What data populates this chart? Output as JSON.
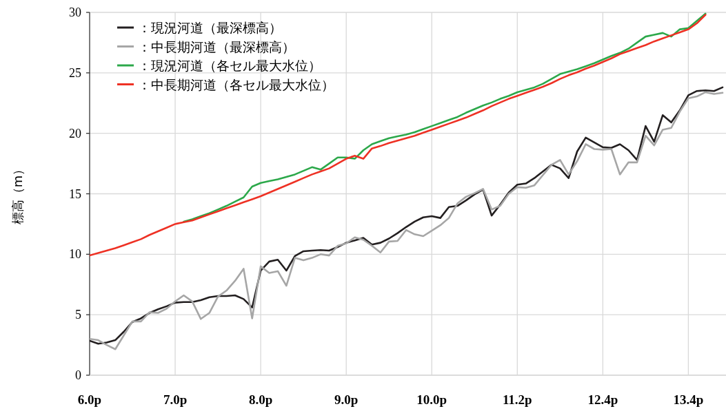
{
  "chart_data": {
    "type": "line",
    "ylabel": "標高（m）",
    "ylim": [
      0,
      30
    ],
    "yticks": [
      0,
      5,
      10,
      15,
      20,
      25,
      30
    ],
    "grid": true,
    "legend": "top left",
    "categories": [
      "6.0p",
      null,
      null,
      null,
      null,
      null,
      null,
      null,
      null,
      null,
      "7.0p",
      null,
      null,
      null,
      null,
      null,
      null,
      null,
      null,
      null,
      "8.0p",
      null,
      null,
      null,
      null,
      null,
      null,
      null,
      null,
      null,
      "9.0p",
      null,
      null,
      null,
      null,
      null,
      null,
      null,
      null,
      null,
      "10.0p",
      null,
      null,
      null,
      null,
      null,
      null,
      null,
      null,
      null,
      "11.2p",
      null,
      null,
      null,
      null,
      null,
      null,
      null,
      null,
      null,
      "12.4p",
      null,
      null,
      null,
      null,
      null,
      null,
      null,
      null,
      null,
      "13.4p",
      null,
      null,
      null,
      null
    ],
    "series": [
      {
        "name": "：現況河道（最深標高）",
        "color": "#231f20",
        "values": [
          2.85,
          2.6,
          2.7,
          2.9,
          3.6,
          4.4,
          4.7,
          5.15,
          5.45,
          5.7,
          6.0,
          6.05,
          6.05,
          6.2,
          6.45,
          6.55,
          6.55,
          6.6,
          6.3,
          5.6,
          8.65,
          9.4,
          9.55,
          8.65,
          9.85,
          10.25,
          10.3,
          10.35,
          10.3,
          10.6,
          10.95,
          11.15,
          11.35,
          10.8,
          10.95,
          11.3,
          11.75,
          12.25,
          12.7,
          13.05,
          13.15,
          13.0,
          13.9,
          14.0,
          14.45,
          14.95,
          15.35,
          13.2,
          14.1,
          15.1,
          15.75,
          15.85,
          16.3,
          16.85,
          17.4,
          17.1,
          16.3,
          18.5,
          19.65,
          19.25,
          18.85,
          18.8,
          19.1,
          18.6,
          17.8,
          20.6,
          19.3,
          21.5,
          20.9,
          21.9,
          23.15,
          23.5,
          23.55,
          23.5,
          23.8
        ]
      },
      {
        "name": "：中長期河道（最深標高）",
        "color": "#a6a6a6",
        "values": [
          3.0,
          2.9,
          2.5,
          2.15,
          3.3,
          4.45,
          4.45,
          5.2,
          5.15,
          5.5,
          6.1,
          6.6,
          6.1,
          4.65,
          5.15,
          6.5,
          7.0,
          7.8,
          8.8,
          4.7,
          9.0,
          8.45,
          8.6,
          7.4,
          9.7,
          9.5,
          9.7,
          10.0,
          9.9,
          10.7,
          10.9,
          11.4,
          11.2,
          10.7,
          10.15,
          11.05,
          11.1,
          12.0,
          11.65,
          11.5,
          11.95,
          12.4,
          13.0,
          14.2,
          14.75,
          15.05,
          15.4,
          13.7,
          14.0,
          15.0,
          15.55,
          15.5,
          15.7,
          16.55,
          17.4,
          17.8,
          16.6,
          17.7,
          19.1,
          18.7,
          18.65,
          18.7,
          16.6,
          17.6,
          17.6,
          19.8,
          19.0,
          20.3,
          20.45,
          21.8,
          22.9,
          23.05,
          23.4,
          23.25,
          23.35
        ]
      },
      {
        "name": "：現況河道（各セル最大水位）",
        "color": "#2ca84a",
        "values": [
          null,
          null,
          null,
          null,
          null,
          null,
          null,
          null,
          null,
          null,
          null,
          12.7,
          12.9,
          13.15,
          13.4,
          13.7,
          14.0,
          14.35,
          14.7,
          15.6,
          15.9,
          16.05,
          16.2,
          16.4,
          16.6,
          16.9,
          17.2,
          17.0,
          17.5,
          18.0,
          18.0,
          17.9,
          18.6,
          19.1,
          19.35,
          19.6,
          19.75,
          19.9,
          20.1,
          20.35,
          20.6,
          20.85,
          21.1,
          21.35,
          21.7,
          22.0,
          22.3,
          22.55,
          22.85,
          23.1,
          23.4,
          23.6,
          23.8,
          24.1,
          24.5,
          24.9,
          25.1,
          25.3,
          25.55,
          25.8,
          26.1,
          26.4,
          26.65,
          27.0,
          27.5,
          28.0,
          28.15,
          28.3,
          28.0,
          28.6,
          28.7,
          29.3,
          29.9,
          null,
          null
        ]
      },
      {
        "name": "：中長期河道（各セル最大水位）",
        "color": "#ee3124",
        "values": [
          9.9,
          10.1,
          10.3,
          10.5,
          10.75,
          11.0,
          11.25,
          11.6,
          11.9,
          12.2,
          12.5,
          12.65,
          12.8,
          13.05,
          13.3,
          13.55,
          13.8,
          14.05,
          14.3,
          14.55,
          14.8,
          15.1,
          15.4,
          15.7,
          16.0,
          16.3,
          16.6,
          16.85,
          17.1,
          17.5,
          17.9,
          18.15,
          17.9,
          18.75,
          18.95,
          19.2,
          19.4,
          19.6,
          19.8,
          20.05,
          20.3,
          20.55,
          20.8,
          21.05,
          21.3,
          21.6,
          21.9,
          22.25,
          22.55,
          22.85,
          23.1,
          23.35,
          23.6,
          23.85,
          24.15,
          24.5,
          24.8,
          25.05,
          25.35,
          25.6,
          25.9,
          26.2,
          26.55,
          26.8,
          27.05,
          27.3,
          27.6,
          27.85,
          28.1,
          28.35,
          28.6,
          29.1,
          29.8,
          null,
          null
        ]
      }
    ]
  }
}
